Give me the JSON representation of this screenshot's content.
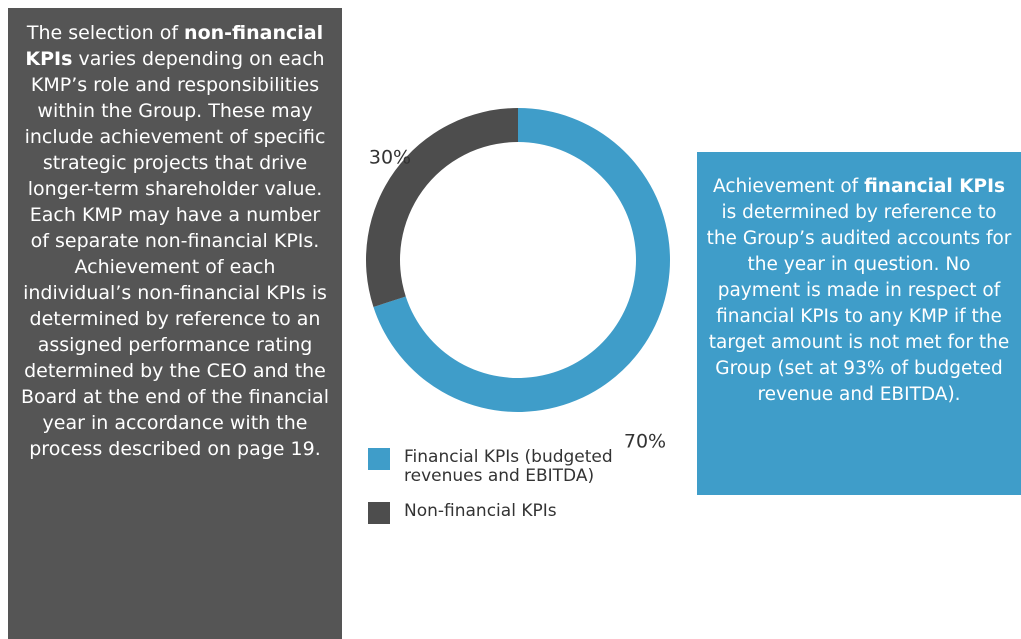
{
  "left_text": [
    "The selection of ",
    "non-financial KPIs",
    " varies depending on each KMP’s role and responsibilities within the Group. These may include achievement of specific strategic projects that drive longer-term shareholder value. Each KMP may have a number of separate non-financial KPIs. Achievement of each individual’s non-financial KPIs is determined by reference to an assigned performance rating determined by the CEO and the Board at the end of the financial year in accordance with the process described on page 19."
  ],
  "right_text": [
    "Achievement of ",
    "financial KPIs",
    " is determined by reference to the Group’s audited accounts for the year in question. No payment is made in respect of financial KPIs to any KMP if the target amount is not met for the Group (set at 93% of budgeted revenue and EBITDA)."
  ],
  "chart_data": {
    "type": "pie",
    "donut": true,
    "categories": [
      "Financial KPIs (budgeted revenues and EBITDA)",
      "Non-financial KPIs"
    ],
    "values": [
      70,
      30
    ],
    "value_labels": [
      "70%",
      "30%"
    ],
    "colors": [
      "#3f9dc9",
      "#4d4d4d"
    ]
  }
}
